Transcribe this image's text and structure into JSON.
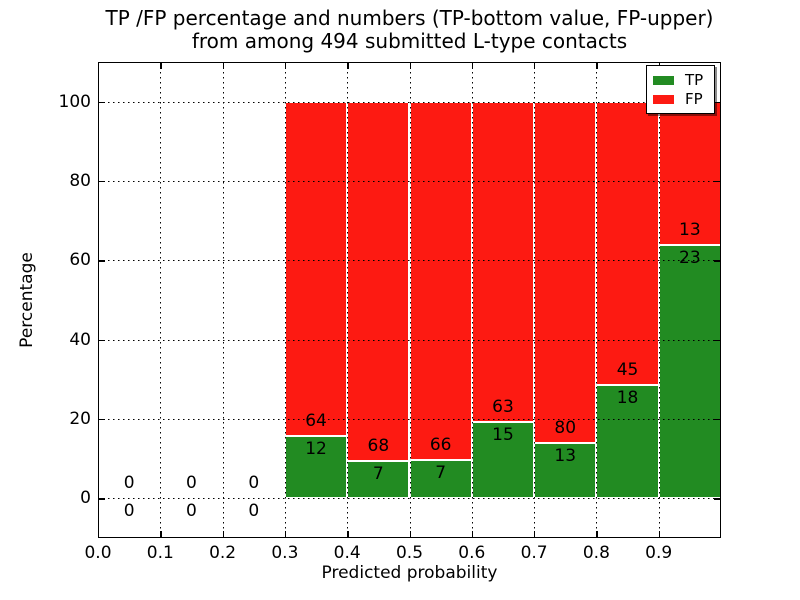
{
  "title": {
    "line1": "TP /FP percentage and numbers (TP-bottom value, FP-upper)",
    "line2": "from among 494 submitted L-type contacts"
  },
  "axes": {
    "xlabel": "Predicted probability",
    "ylabel": "Percentage",
    "x_tick_labels": [
      "0.0",
      "0.1",
      "0.2",
      "0.3",
      "0.4",
      "0.5",
      "0.6",
      "0.7",
      "0.8",
      "0.9"
    ],
    "y_tick_labels": [
      "0",
      "20",
      "40",
      "60",
      "80",
      "100"
    ],
    "xlim": [
      0.0,
      1.0
    ],
    "ylim": [
      -10,
      110
    ],
    "grid": "dotted"
  },
  "legend": {
    "position": "upper right",
    "items": [
      {
        "label": "TP",
        "color": "#228B22"
      },
      {
        "label": "FP",
        "color": "#fd1a12"
      }
    ]
  },
  "chart_data": {
    "type": "bar",
    "stacked": true,
    "normalize": "each bar scaled to 100%, TP bottom / FP top",
    "title": "TP /FP percentage and numbers (TP-bottom value, FP-upper) from among 494 submitted L-type contacts",
    "xlabel": "Predicted probability",
    "ylabel": "Percentage",
    "total_submitted": 494,
    "bin_width": 0.1,
    "bin_starts": [
      0.0,
      0.1,
      0.2,
      0.3,
      0.4,
      0.5,
      0.6,
      0.7,
      0.8,
      0.9
    ],
    "series": [
      {
        "name": "TP",
        "color": "#228B22",
        "counts": [
          0,
          0,
          0,
          12,
          7,
          7,
          15,
          13,
          18,
          23
        ]
      },
      {
        "name": "FP",
        "color": "#fd1a12",
        "counts": [
          0,
          0,
          0,
          64,
          68,
          66,
          63,
          80,
          45,
          13
        ]
      }
    ]
  }
}
